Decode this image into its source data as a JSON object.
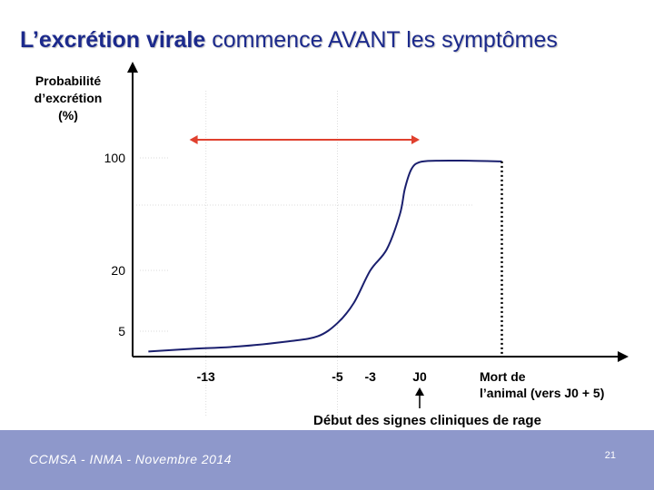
{
  "slide": {
    "title_bold": "L’excrétion virale",
    "title_rest": " commence AVANT les symptômes",
    "footer": "CCMSA - INMA - Novembre 2014",
    "page_number": "21"
  },
  "colors": {
    "title": "#1c2a8c",
    "curve": "#1a1f6e",
    "arrow": "#e0402e",
    "footer_bg": "#8e98cb"
  },
  "chart_data": {
    "type": "line",
    "ylabel_lines": [
      "Probabilité",
      "d’excrétion",
      "(%)"
    ],
    "y_ticks": [
      {
        "label": "5",
        "value": 5
      },
      {
        "label": "20",
        "value": 20
      },
      {
        "label": "100",
        "value": 100
      }
    ],
    "x_ticks": [
      {
        "label": "-13",
        "value": -13
      },
      {
        "label": "-5",
        "value": -5
      },
      {
        "label": "-3",
        "value": -3
      },
      {
        "label": "J0",
        "value": 0
      }
    ],
    "mort_label_lines": [
      "Mort de",
      "l’animal (vers J0 + 5)"
    ],
    "mort_value": 5,
    "clinical_label": "Début des signes cliniques de rage",
    "series": [
      {
        "name": "Probabilité d’excrétion",
        "points": [
          [
            -16.5,
            1
          ],
          [
            -14,
            1.5
          ],
          [
            -11,
            2
          ],
          [
            -8,
            3
          ],
          [
            -6.2,
            4
          ],
          [
            -5,
            7
          ],
          [
            -4,
            12
          ],
          [
            -3,
            20
          ],
          [
            -2,
            35
          ],
          [
            -1.2,
            60
          ],
          [
            -0.9,
            78
          ],
          [
            -0.5,
            92
          ],
          [
            0,
            97
          ],
          [
            1,
            98
          ],
          [
            3,
            98
          ],
          [
            5,
            97.5
          ]
        ]
      }
    ],
    "arrow_range": [
      -14,
      0
    ]
  }
}
